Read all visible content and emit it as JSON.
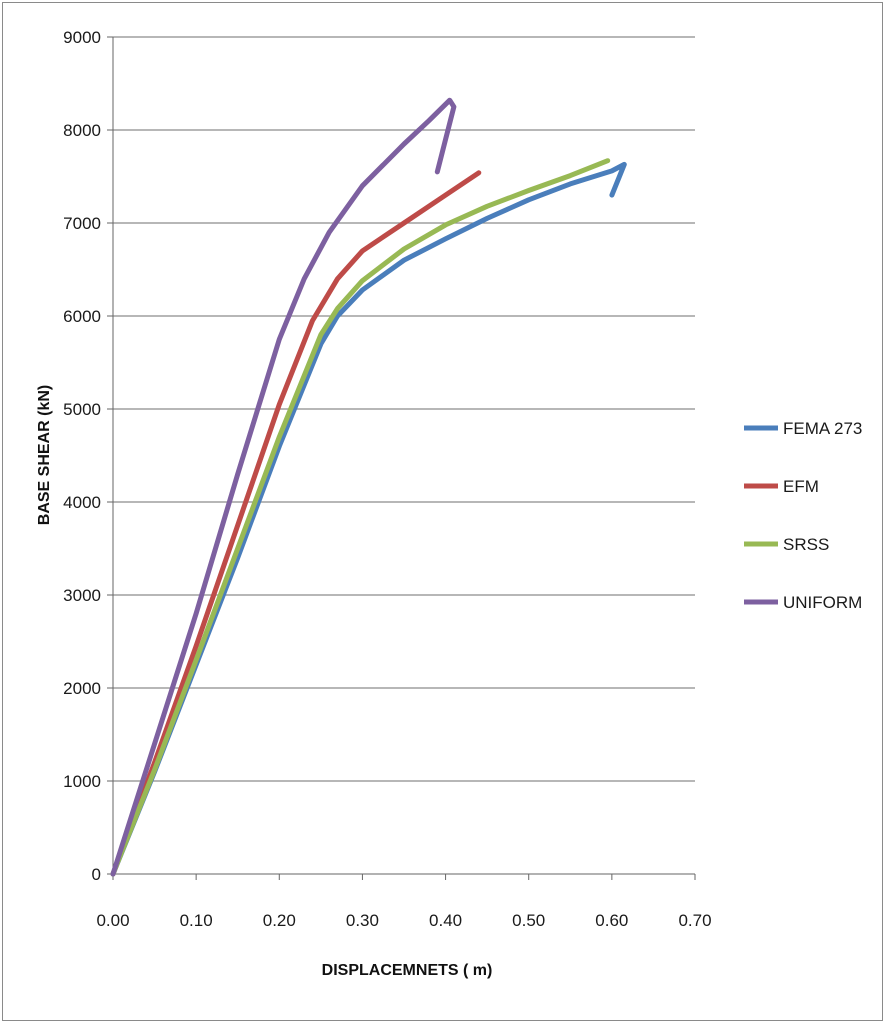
{
  "chart_data": {
    "type": "line",
    "title": "",
    "xlabel": "DISPLACEMNETS ( m)",
    "ylabel": "BASE SHEAR  (kN)",
    "xlim": [
      0,
      0.7
    ],
    "ylim": [
      0,
      9000
    ],
    "xticks": [
      "0.00",
      "0.10",
      "0.20",
      "0.30",
      "0.40",
      "0.50",
      "0.60",
      "0.70"
    ],
    "xtick_values": [
      0,
      0.1,
      0.2,
      0.3,
      0.4,
      0.5,
      0.6,
      0.7
    ],
    "yticks": [
      "0",
      "1000",
      "2000",
      "3000",
      "4000",
      "5000",
      "6000",
      "7000",
      "8000",
      "9000"
    ],
    "ytick_values": [
      0,
      1000,
      2000,
      3000,
      4000,
      5000,
      6000,
      7000,
      8000,
      9000
    ],
    "grid": "horizontal",
    "legend_position": "right",
    "series": [
      {
        "name": "FEMA 273",
        "color": "#4a7ebb",
        "points": [
          [
            0,
            0
          ],
          [
            0.05,
            1100
          ],
          [
            0.1,
            2250
          ],
          [
            0.15,
            3400
          ],
          [
            0.2,
            4600
          ],
          [
            0.25,
            5700
          ],
          [
            0.27,
            6000
          ],
          [
            0.3,
            6280
          ],
          [
            0.35,
            6600
          ],
          [
            0.4,
            6830
          ],
          [
            0.45,
            7050
          ],
          [
            0.5,
            7250
          ],
          [
            0.55,
            7420
          ],
          [
            0.6,
            7560
          ],
          [
            0.615,
            7630
          ],
          [
            0.6,
            7300
          ]
        ]
      },
      {
        "name": "EFM",
        "color": "#be4b48",
        "points": [
          [
            0,
            0
          ],
          [
            0.05,
            1200
          ],
          [
            0.1,
            2450
          ],
          [
            0.15,
            3750
          ],
          [
            0.2,
            5050
          ],
          [
            0.24,
            5950
          ],
          [
            0.27,
            6400
          ],
          [
            0.3,
            6700
          ],
          [
            0.35,
            7000
          ],
          [
            0.4,
            7300
          ],
          [
            0.44,
            7540
          ]
        ]
      },
      {
        "name": "SRSS",
        "color": "#98b954",
        "points": [
          [
            0,
            0
          ],
          [
            0.05,
            1120
          ],
          [
            0.1,
            2300
          ],
          [
            0.15,
            3500
          ],
          [
            0.2,
            4700
          ],
          [
            0.25,
            5800
          ],
          [
            0.27,
            6080
          ],
          [
            0.3,
            6380
          ],
          [
            0.35,
            6720
          ],
          [
            0.4,
            6980
          ],
          [
            0.45,
            7180
          ],
          [
            0.5,
            7350
          ],
          [
            0.55,
            7510
          ],
          [
            0.595,
            7670
          ]
        ]
      },
      {
        "name": "UNIFORM",
        "color": "#7d60a0",
        "points": [
          [
            0,
            0
          ],
          [
            0.05,
            1400
          ],
          [
            0.1,
            2800
          ],
          [
            0.15,
            4300
          ],
          [
            0.2,
            5750
          ],
          [
            0.23,
            6400
          ],
          [
            0.26,
            6900
          ],
          [
            0.3,
            7400
          ],
          [
            0.35,
            7850
          ],
          [
            0.38,
            8100
          ],
          [
            0.405,
            8320
          ],
          [
            0.41,
            8250
          ],
          [
            0.4,
            7900
          ],
          [
            0.39,
            7550
          ]
        ]
      }
    ]
  }
}
